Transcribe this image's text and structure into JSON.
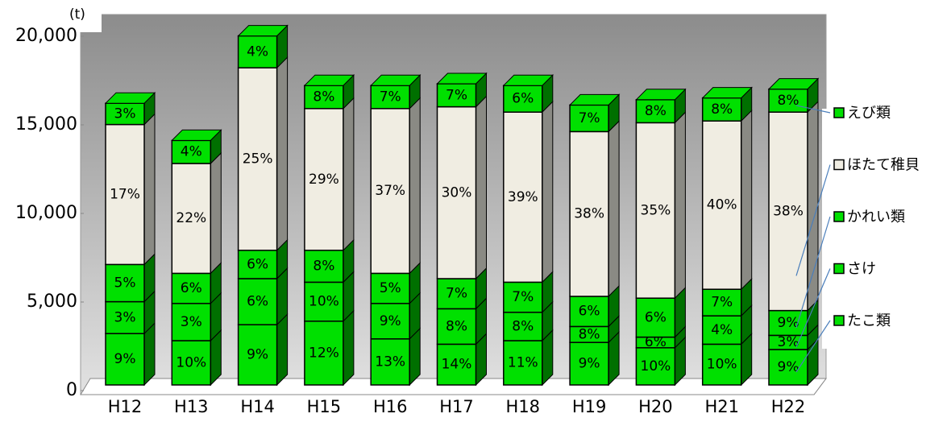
{
  "chart_data": {
    "type": "bar3d_stacked",
    "y_label": "(t)",
    "categories": [
      "H12",
      "H13",
      "H14",
      "H15",
      "H16",
      "H17",
      "H18",
      "H19",
      "H20",
      "H21",
      "H22"
    ],
    "ylim": [
      0,
      20000
    ],
    "yticks": [
      {
        "value": 0,
        "label": "0"
      },
      {
        "value": 5000,
        "label": "5,000"
      },
      {
        "value": 10000,
        "label": "10,000"
      },
      {
        "value": 15000,
        "label": "15,000"
      },
      {
        "value": 20000,
        "label": "20,000"
      }
    ],
    "series": [
      {
        "name": "たこ類",
        "color": "#00e000",
        "values": [
          2900,
          2500,
          3400,
          3600,
          2600,
          2300,
          2500,
          2400,
          2100,
          2300,
          2000
        ],
        "share_labels": [
          "9%",
          "10%",
          "9%",
          "12%",
          "13%",
          "14%",
          "11%",
          "9%",
          "10%",
          "10%",
          "9%"
        ]
      },
      {
        "name": "さけ",
        "color": "#00e000",
        "values": [
          1800,
          2100,
          2600,
          2200,
          2000,
          2000,
          1600,
          900,
          600,
          1600,
          800
        ],
        "share_labels": [
          "3%",
          "3%",
          "6%",
          "10%",
          "9%",
          "8%",
          "8%",
          "8%",
          "6%",
          "4%",
          "3%"
        ]
      },
      {
        "name": "かれい類",
        "color": "#00e000",
        "values": [
          2100,
          1700,
          1600,
          1800,
          1700,
          1700,
          1700,
          1700,
          2200,
          1500,
          1400
        ],
        "share_labels": [
          "5%",
          "6%",
          "6%",
          "8%",
          "5%",
          "7%",
          "7%",
          "6%",
          "6%",
          "7%",
          "9%"
        ]
      },
      {
        "name": "ほたて稚貝",
        "color": "#f0ede2",
        "values": [
          7900,
          6200,
          10300,
          8000,
          9300,
          9700,
          9600,
          9300,
          9900,
          9500,
          11200
        ],
        "share_labels": [
          "17%",
          "22%",
          "25%",
          "29%",
          "37%",
          "30%",
          "39%",
          "38%",
          "35%",
          "40%",
          "38%"
        ]
      },
      {
        "name": "えび類",
        "color": "#00e000",
        "values": [
          1200,
          1300,
          1800,
          1300,
          1300,
          1300,
          1500,
          1500,
          1300,
          1300,
          1300
        ],
        "share_labels": [
          "3%",
          "4%",
          "4%",
          "8%",
          "7%",
          "7%",
          "6%",
          "7%",
          "8%",
          "8%",
          "8%"
        ]
      }
    ]
  }
}
